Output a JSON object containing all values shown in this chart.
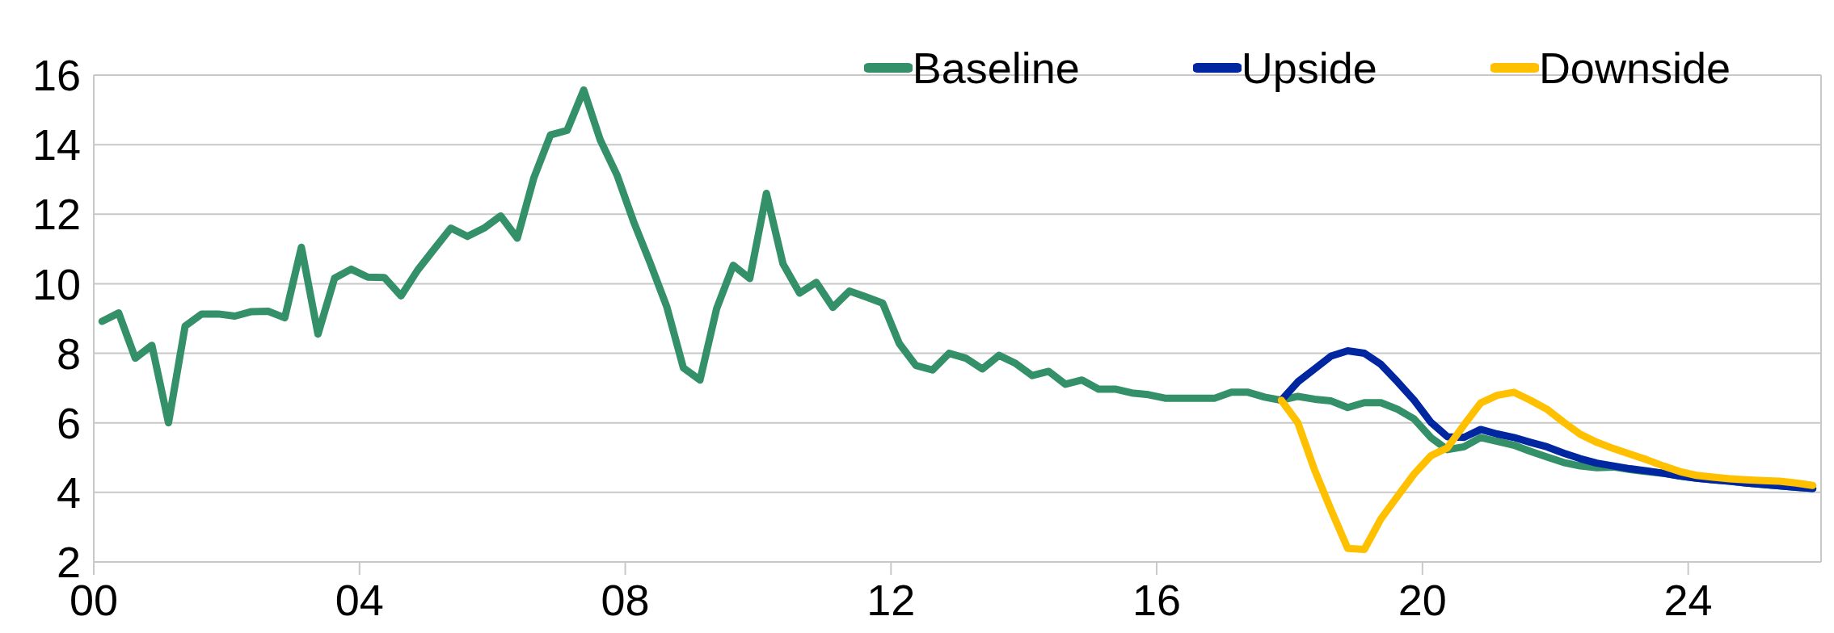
{
  "chart_data": {
    "type": "line",
    "x": [
      2000.125,
      2000.375,
      2000.625,
      2000.875,
      2001.125,
      2001.375,
      2001.625,
      2001.875,
      2002.125,
      2002.375,
      2002.625,
      2002.875,
      2003.125,
      2003.375,
      2003.625,
      2003.875,
      2004.125,
      2004.375,
      2004.625,
      2004.875,
      2005.125,
      2005.375,
      2005.625,
      2005.875,
      2006.125,
      2006.375,
      2006.625,
      2006.875,
      2007.125,
      2007.375,
      2007.625,
      2007.875,
      2008.125,
      2008.375,
      2008.625,
      2008.875,
      2009.125,
      2009.375,
      2009.625,
      2009.875,
      2010.125,
      2010.375,
      2010.625,
      2010.875,
      2011.125,
      2011.375,
      2011.625,
      2011.875,
      2012.125,
      2012.375,
      2012.625,
      2012.875,
      2013.125,
      2013.375,
      2013.625,
      2013.875,
      2014.125,
      2014.375,
      2014.625,
      2014.875,
      2015.125,
      2015.375,
      2015.625,
      2015.875,
      2016.125,
      2016.375,
      2016.625,
      2016.875,
      2017.125,
      2017.375,
      2017.625,
      2017.875,
      2018.125,
      2018.375,
      2018.625,
      2018.875,
      2019.125,
      2019.375,
      2019.625,
      2019.875,
      2020.125,
      2020.375,
      2020.625,
      2020.875,
      2021.125,
      2021.375,
      2021.625,
      2021.875,
      2022.125,
      2022.375,
      2022.625,
      2022.875,
      2023.125,
      2023.375,
      2023.625,
      2023.875,
      2024.125,
      2024.375,
      2024.625,
      2024.875,
      2025.125,
      2025.375,
      2025.625,
      2025.875
    ],
    "series": [
      {
        "name": "Baseline",
        "color": "#339068",
        "values": [
          8.92,
          9.16,
          7.86,
          8.23,
          6.0,
          8.78,
          9.13,
          9.13,
          9.07,
          9.2,
          9.21,
          9.02,
          11.05,
          8.55,
          10.16,
          10.42,
          10.19,
          10.18,
          9.65,
          10.39,
          11.0,
          11.6,
          11.36,
          11.6,
          11.95,
          11.31,
          13.05,
          14.28,
          14.41,
          15.57,
          14.13,
          13.13,
          11.79,
          10.6,
          9.34,
          7.58,
          7.23,
          9.28,
          10.53,
          10.15,
          12.6,
          10.57,
          9.73,
          10.04,
          9.32,
          9.79,
          9.62,
          9.44,
          8.28,
          7.65,
          7.52,
          8.0,
          7.86,
          7.55,
          7.94,
          7.71,
          7.36,
          7.48,
          7.11,
          7.23,
          6.97,
          6.97,
          6.86,
          6.81,
          6.71,
          6.71,
          6.71,
          6.71,
          6.88,
          6.88,
          6.74,
          6.65,
          6.76,
          6.68,
          6.63,
          6.44,
          6.58,
          6.58,
          6.39,
          6.11,
          5.58,
          5.23,
          5.31,
          5.58,
          5.47,
          5.36,
          5.18,
          5.02,
          4.86,
          4.76,
          4.71,
          4.73,
          4.66,
          4.6,
          4.55,
          4.47,
          4.41,
          4.36,
          4.32,
          4.27,
          4.23,
          4.19,
          4.15,
          4.11
        ]
      },
      {
        "name": "Upside",
        "color": "#0026a0",
        "values": [
          null,
          null,
          null,
          null,
          null,
          null,
          null,
          null,
          null,
          null,
          null,
          null,
          null,
          null,
          null,
          null,
          null,
          null,
          null,
          null,
          null,
          null,
          null,
          null,
          null,
          null,
          null,
          null,
          null,
          null,
          null,
          null,
          null,
          null,
          null,
          null,
          null,
          null,
          null,
          null,
          null,
          null,
          null,
          null,
          null,
          null,
          null,
          null,
          null,
          null,
          null,
          null,
          null,
          null,
          null,
          null,
          null,
          null,
          null,
          null,
          null,
          null,
          null,
          null,
          null,
          null,
          null,
          null,
          null,
          null,
          null,
          6.65,
          7.18,
          7.55,
          7.92,
          8.07,
          8.0,
          7.68,
          7.18,
          6.65,
          6.02,
          5.6,
          5.58,
          5.81,
          5.68,
          5.58,
          5.44,
          5.31,
          5.13,
          4.97,
          4.84,
          4.76,
          4.68,
          4.62,
          4.55,
          4.47,
          4.41,
          4.36,
          4.32,
          4.27,
          4.23,
          4.19,
          4.15,
          4.11
        ]
      },
      {
        "name": "Downside",
        "color": "#ffc000",
        "values": [
          null,
          null,
          null,
          null,
          null,
          null,
          null,
          null,
          null,
          null,
          null,
          null,
          null,
          null,
          null,
          null,
          null,
          null,
          null,
          null,
          null,
          null,
          null,
          null,
          null,
          null,
          null,
          null,
          null,
          null,
          null,
          null,
          null,
          null,
          null,
          null,
          null,
          null,
          null,
          null,
          null,
          null,
          null,
          null,
          null,
          null,
          null,
          null,
          null,
          null,
          null,
          null,
          null,
          null,
          null,
          null,
          null,
          null,
          null,
          null,
          null,
          null,
          null,
          null,
          null,
          null,
          null,
          null,
          null,
          null,
          null,
          6.65,
          6.0,
          4.65,
          3.49,
          2.39,
          2.36,
          3.24,
          3.89,
          4.53,
          5.05,
          5.28,
          5.94,
          6.57,
          6.79,
          6.88,
          6.65,
          6.39,
          6.02,
          5.67,
          5.44,
          5.26,
          5.1,
          4.94,
          4.76,
          4.6,
          4.49,
          4.44,
          4.39,
          4.36,
          4.34,
          4.32,
          4.27,
          4.2
        ]
      }
    ],
    "xlim": [
      2000,
      2026
    ],
    "xticks": [
      {
        "value": 2000,
        "label": "00"
      },
      {
        "value": 2004,
        "label": "04"
      },
      {
        "value": 2008,
        "label": "08"
      },
      {
        "value": 2012,
        "label": "12"
      },
      {
        "value": 2016,
        "label": "16"
      },
      {
        "value": 2020,
        "label": "20"
      },
      {
        "value": 2024,
        "label": "24"
      }
    ],
    "ylim": [
      2,
      16
    ],
    "yticks": [
      2,
      4,
      6,
      8,
      10,
      12,
      14,
      16
    ],
    "grid": "y",
    "legend": "top right",
    "marker": "none",
    "line_style": "solid"
  }
}
